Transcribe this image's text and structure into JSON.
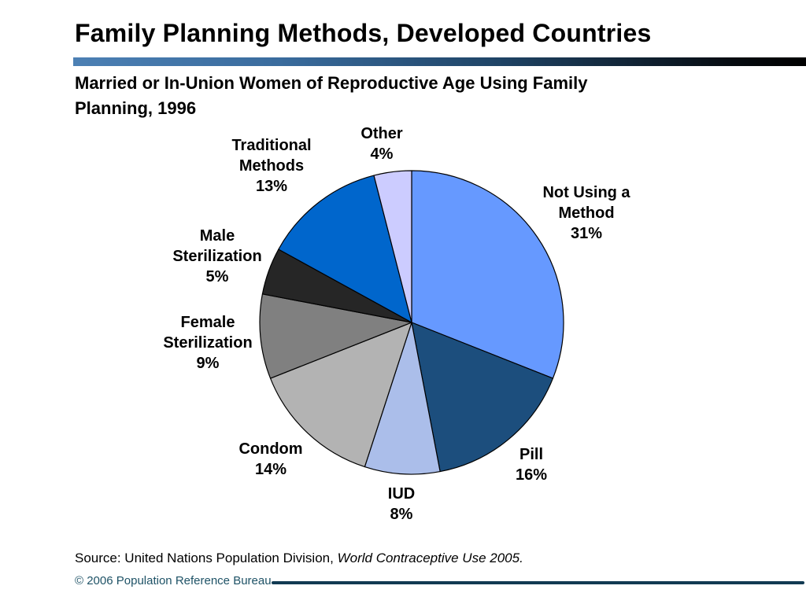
{
  "slide": {
    "title": "Family Planning Methods, Developed Countries",
    "subtitle": "Married or In-Union Women of Reproductive Age Using Family\nPlanning, 1996",
    "source_prefix": "Source: United Nations Population Division, ",
    "source_publication": "World Contraceptive Use 2005.",
    "copyright": "© 2006 Population Reference Bureau",
    "accent_colors": {
      "title_bar_gradient_start": "#4C80B4",
      "title_bar_gradient_end": "#000000",
      "footer_text": "#1E5266",
      "footer_line": "#123A52"
    }
  },
  "chart_data": {
    "type": "pie",
    "title": "Married or In-Union Women of Reproductive Age Using Family Planning, 1996",
    "unit": "%",
    "start_angle_deg": 0,
    "direction": "clockwise",
    "legend": "none (direct slice labels)",
    "categories": [
      "Not Using a Method",
      "Pill",
      "IUD",
      "Condom",
      "Female Sterilization",
      "Male Sterilization",
      "Traditional Methods",
      "Other"
    ],
    "values": [
      31,
      16,
      8,
      14,
      9,
      5,
      13,
      4
    ],
    "colors": [
      "#6699FF",
      "#1C4E7D",
      "#ABBEEA",
      "#B3B3B3",
      "#808080",
      "#262626",
      "#0066CC",
      "#CCCCFF"
    ],
    "outline_color": "#000000",
    "labels": [
      {
        "name": "not-using-a-method",
        "text": "Not Using a\nMethod\n31%"
      },
      {
        "name": "pill",
        "text": "Pill\n16%"
      },
      {
        "name": "iud",
        "text": "IUD\n8%"
      },
      {
        "name": "condom",
        "text": "Condom\n14%"
      },
      {
        "name": "female-sterilization",
        "text": "Female\nSterilization\n9%"
      },
      {
        "name": "male-sterilization",
        "text": "Male\nSterilization\n5%"
      },
      {
        "name": "traditional-methods",
        "text": "Traditional\nMethods\n13%"
      },
      {
        "name": "other",
        "text": "Other\n4%"
      }
    ]
  }
}
